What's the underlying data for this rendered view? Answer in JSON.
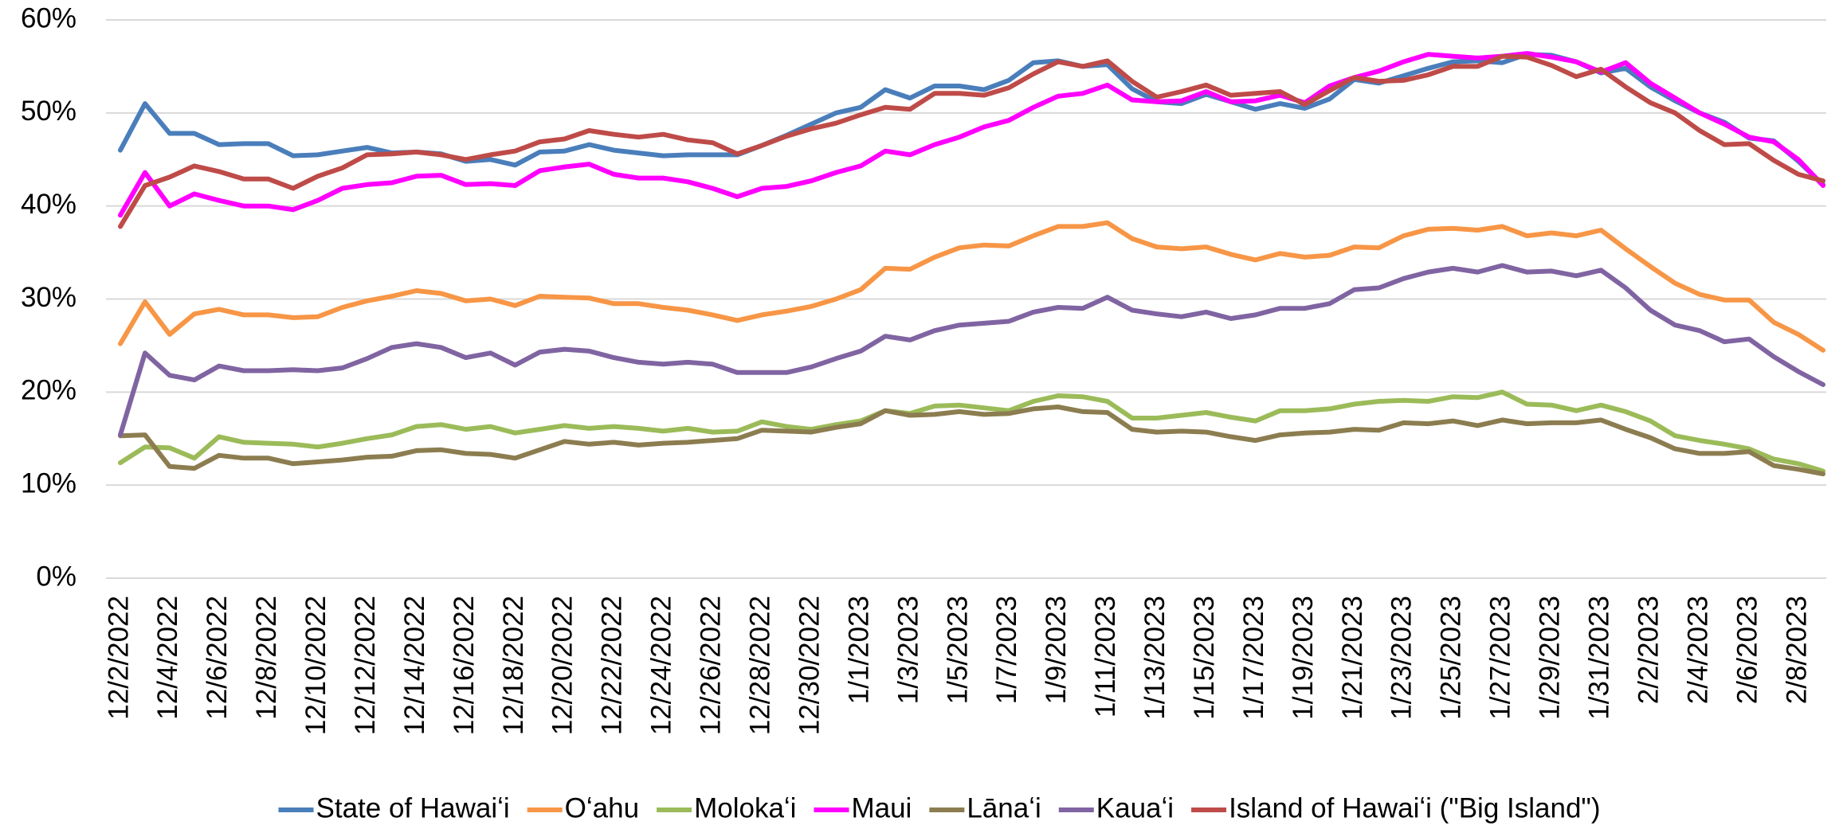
{
  "chart_data": {
    "type": "line",
    "categories": [
      "12/2/2022",
      null,
      "12/4/2022",
      null,
      "12/6/2022",
      null,
      "12/8/2022",
      null,
      "12/10/2022",
      null,
      "12/12/2022",
      null,
      "12/14/2022",
      null,
      "12/16/2022",
      null,
      "12/18/2022",
      null,
      "12/20/2022",
      null,
      "12/22/2022",
      null,
      "12/24/2022",
      null,
      "12/26/2022",
      null,
      "12/28/2022",
      null,
      "12/30/2022",
      null,
      "1/1/2023",
      null,
      "1/3/2023",
      null,
      "1/5/2023",
      null,
      "1/7/2023",
      null,
      "1/9/2023",
      null,
      "1/11/2023",
      null,
      "1/13/2023",
      null,
      "1/15/2023",
      null,
      "1/17/2023",
      null,
      "1/19/2023",
      null,
      "1/21/2023",
      null,
      "1/23/2023",
      null,
      "1/25/2023",
      null,
      "1/27/2023",
      null,
      "1/29/2023",
      null,
      "1/31/2023",
      null,
      "2/2/2023",
      null,
      "2/4/2023",
      null,
      "2/6/2023",
      null,
      "2/8/2023",
      null
    ],
    "series": [
      {
        "name": "State of Hawaiʻi",
        "color": "#4a7ebb",
        "values": [
          46,
          51,
          47.8,
          47.8,
          46.6,
          46.7,
          46.7,
          45.4,
          45.5,
          45.9,
          46.3,
          45.7,
          45.8,
          45.6,
          44.8,
          45.0,
          44.4,
          45.8,
          45.9,
          46.6,
          46.0,
          45.7,
          45.4,
          45.5,
          45.5,
          45.5,
          46.5,
          47.6,
          48.8,
          50.0,
          50.6,
          52.5,
          51.6,
          52.9,
          52.9,
          52.5,
          53.5,
          55.4,
          55.6,
          55.0,
          55.2,
          52.6,
          51.2,
          51.0,
          52.0,
          51.2,
          50.4,
          51.0,
          50.5,
          51.5,
          53.6,
          53.2,
          54.0,
          54.8,
          55.5,
          55.6,
          55.4,
          56.3,
          56.2,
          55.5,
          54.3,
          54.8,
          52.8,
          51.3,
          50.0,
          49.0,
          47.3,
          47.0,
          44.8,
          42.3
        ]
      },
      {
        "name": "Oʻahu",
        "color": "#f79646",
        "values": [
          25.2,
          29.7,
          26.2,
          28.4,
          28.9,
          28.3,
          28.3,
          28.0,
          28.1,
          29.1,
          29.8,
          30.3,
          30.9,
          30.6,
          29.8,
          30.0,
          29.3,
          30.3,
          30.2,
          30.1,
          29.5,
          29.5,
          29.1,
          28.8,
          28.3,
          27.7,
          28.3,
          28.7,
          29.2,
          30.0,
          31.0,
          33.3,
          33.2,
          34.5,
          35.5,
          35.8,
          35.7,
          36.8,
          37.8,
          37.8,
          38.2,
          36.5,
          35.6,
          35.4,
          35.6,
          34.8,
          34.2,
          34.9,
          34.5,
          34.7,
          35.6,
          35.5,
          36.8,
          37.5,
          37.6,
          37.4,
          37.8,
          36.8,
          37.1,
          36.8,
          37.4,
          35.4,
          33.5,
          31.7,
          30.5,
          29.9,
          29.9,
          27.5,
          26.2,
          24.5
        ]
      },
      {
        "name": "Molokaʻi",
        "color": "#9bbb59",
        "values": [
          12.4,
          14.1,
          14.0,
          12.9,
          15.2,
          14.6,
          14.5,
          14.4,
          14.1,
          14.5,
          15.0,
          15.4,
          16.3,
          16.5,
          16.0,
          16.3,
          15.6,
          16.0,
          16.4,
          16.1,
          16.3,
          16.1,
          15.8,
          16.1,
          15.7,
          15.8,
          16.8,
          16.3,
          16.0,
          16.5,
          16.9,
          18.0,
          17.7,
          18.5,
          18.6,
          18.3,
          18.0,
          19.0,
          19.6,
          19.5,
          19.0,
          17.2,
          17.2,
          17.5,
          17.8,
          17.3,
          16.9,
          18.0,
          18.0,
          18.2,
          18.7,
          19.0,
          19.1,
          19.0,
          19.5,
          19.4,
          20.0,
          18.7,
          18.6,
          18.0,
          18.6,
          17.9,
          16.9,
          15.3,
          14.8,
          14.4,
          13.9,
          12.8,
          12.3,
          11.5
        ]
      },
      {
        "name": "Maui",
        "color": "#ff00ff",
        "values": [
          39,
          43.6,
          40,
          41.3,
          40.6,
          40.0,
          40.0,
          39.6,
          40.6,
          41.9,
          42.3,
          42.5,
          43.2,
          43.3,
          42.3,
          42.4,
          42.2,
          43.8,
          44.2,
          44.5,
          43.4,
          43.0,
          43.0,
          42.6,
          41.9,
          41.0,
          41.9,
          42.1,
          42.7,
          43.6,
          44.3,
          45.9,
          45.5,
          46.6,
          47.4,
          48.5,
          49.2,
          50.6,
          51.8,
          52.1,
          53.0,
          51.4,
          51.2,
          51.3,
          52.3,
          51.2,
          51.3,
          51.9,
          51.1,
          52.9,
          53.8,
          54.5,
          55.5,
          56.3,
          56.1,
          55.9,
          56.1,
          56.4,
          56.0,
          55.5,
          54.4,
          55.4,
          53.2,
          51.6,
          50.0,
          48.8,
          47.4,
          46.9,
          45.0,
          42.2
        ]
      },
      {
        "name": "Lānaʻi",
        "color": "#8c7d50",
        "values": [
          15.3,
          15.4,
          12.0,
          11.8,
          13.2,
          12.9,
          12.9,
          12.3,
          12.5,
          12.7,
          13.0,
          13.1,
          13.7,
          13.8,
          13.4,
          13.3,
          12.9,
          13.8,
          14.7,
          14.4,
          14.6,
          14.3,
          14.5,
          14.6,
          14.8,
          15.0,
          15.9,
          15.8,
          15.7,
          16.2,
          16.6,
          18.0,
          17.5,
          17.6,
          17.9,
          17.6,
          17.7,
          18.2,
          18.4,
          17.9,
          17.8,
          16.0,
          15.7,
          15.8,
          15.7,
          15.2,
          14.8,
          15.4,
          15.6,
          15.7,
          16.0,
          15.9,
          16.7,
          16.6,
          16.9,
          16.4,
          17.0,
          16.6,
          16.7,
          16.7,
          17.0,
          16.0,
          15.1,
          13.9,
          13.4,
          13.4,
          13.6,
          12.1,
          11.7,
          11.2
        ]
      },
      {
        "name": "Kauaʻi",
        "color": "#8064a2",
        "values": [
          15.4,
          24.2,
          21.8,
          21.3,
          22.8,
          22.3,
          22.3,
          22.4,
          22.3,
          22.6,
          23.6,
          24.8,
          25.2,
          24.8,
          23.7,
          24.2,
          22.9,
          24.3,
          24.6,
          24.4,
          23.7,
          23.2,
          23.0,
          23.2,
          23.0,
          22.1,
          22.1,
          22.1,
          22.7,
          23.6,
          24.4,
          26.0,
          25.6,
          26.6,
          27.2,
          27.4,
          27.6,
          28.6,
          29.1,
          29.0,
          30.2,
          28.8,
          28.4,
          28.1,
          28.6,
          27.9,
          28.3,
          29.0,
          29.0,
          29.5,
          31.0,
          31.2,
          32.2,
          32.9,
          33.3,
          32.9,
          33.6,
          32.9,
          33.0,
          32.5,
          33.1,
          31.2,
          28.8,
          27.2,
          26.6,
          25.4,
          25.7,
          23.8,
          22.2,
          20.8
        ]
      },
      {
        "name": "Island of Hawaiʻi (\"Big Island\")",
        "color": "#be4b48",
        "values": [
          37.8,
          42.2,
          43.1,
          44.3,
          43.7,
          42.9,
          42.9,
          41.9,
          43.2,
          44.1,
          45.5,
          45.6,
          45.8,
          45.5,
          45.0,
          45.5,
          45.9,
          46.9,
          47.2,
          48.1,
          47.7,
          47.4,
          47.7,
          47.1,
          46.8,
          45.6,
          46.5,
          47.5,
          48.3,
          48.9,
          49.8,
          50.6,
          50.4,
          52.1,
          52.1,
          51.9,
          52.7,
          54.2,
          55.5,
          55.0,
          55.6,
          53.4,
          51.7,
          52.3,
          53.0,
          51.9,
          52.1,
          52.3,
          50.9,
          52.4,
          53.8,
          53.4,
          53.5,
          54.1,
          55.0,
          55.0,
          56.1,
          56.0,
          55.1,
          53.9,
          54.7,
          52.8,
          51.1,
          50.0,
          48.1,
          46.6,
          46.7,
          44.9,
          43.4,
          42.7
        ]
      }
    ],
    "ylim": [
      0,
      60
    ],
    "yticks": [
      {
        "value": 0,
        "label": "0%"
      },
      {
        "value": 10,
        "label": "10%"
      },
      {
        "value": 20,
        "label": "20%"
      },
      {
        "value": 30,
        "label": "30%"
      },
      {
        "value": 40,
        "label": "40%"
      },
      {
        "value": 50,
        "label": "50%"
      },
      {
        "value": 60,
        "label": "60%"
      }
    ],
    "grid": true,
    "legend": "bottom"
  }
}
